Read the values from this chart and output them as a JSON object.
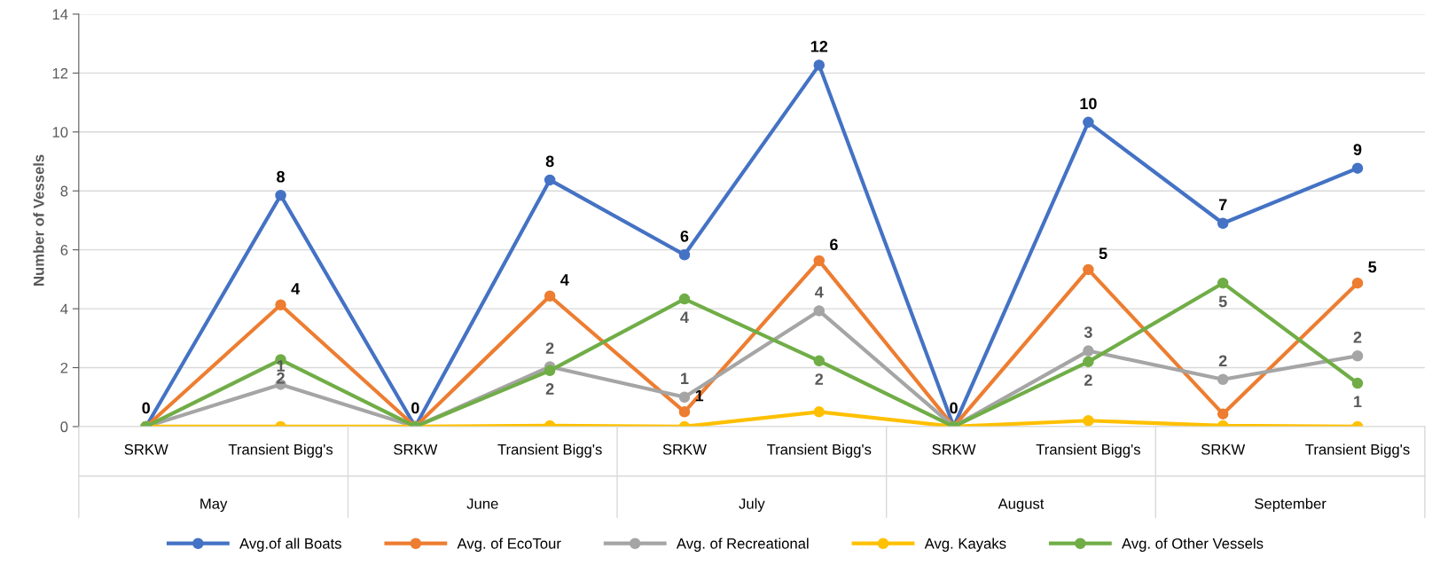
{
  "chart_data": {
    "type": "line",
    "ylabel": "Number of Vessels",
    "categories": [
      "SRKW",
      "Transient Bigg's",
      "SRKW",
      "Transient Bigg's",
      "SRKW",
      "Transient Bigg's",
      "SRKW",
      "Transient Bigg's",
      "SRKW",
      "Transient Bigg's"
    ],
    "annotations": [
      "May",
      "June",
      "July",
      "August",
      "September"
    ],
    "ylim": [
      0,
      14
    ],
    "yticks": [
      0,
      2,
      4,
      6,
      8,
      10,
      12,
      14
    ],
    "grid": "y",
    "legend": "bottom",
    "marker": "circle",
    "line_style": "solid",
    "series": [
      {
        "name": "Avg.of all Boats",
        "color": "#4472c4",
        "values": [
          0,
          7.85,
          0,
          8.37,
          5.83,
          12.27,
          0,
          10.33,
          6.9,
          8.77
        ],
        "value_labels": [
          "0",
          "8",
          "0",
          "8",
          "6",
          "12",
          "0",
          "10",
          "7",
          "9"
        ]
      },
      {
        "name": "Avg. of EcoTour",
        "color": "#ed7d31",
        "values": [
          0,
          4.13,
          0,
          4.43,
          0.5,
          5.63,
          0,
          5.33,
          0.43,
          4.87
        ],
        "value_labels": [
          null,
          "4",
          null,
          "4",
          "1",
          "6",
          null,
          "5",
          null,
          "5"
        ]
      },
      {
        "name": "Avg. of Recreational",
        "color": "#a5a5a5",
        "values": [
          0,
          1.43,
          0,
          2.03,
          1.0,
          3.93,
          0,
          2.57,
          1.6,
          2.4
        ],
        "value_labels": [
          null,
          "1",
          null,
          "2",
          "1",
          "4",
          null,
          "3",
          "2",
          "2"
        ]
      },
      {
        "name": "Avg. Kayaks",
        "color": "#ffc000",
        "values": [
          0,
          0,
          0,
          0.03,
          0,
          0.5,
          0,
          0.2,
          0.03,
          0
        ]
      },
      {
        "name": "Avg. of Other Vessels",
        "color": "#70ad47",
        "values": [
          0,
          2.27,
          0,
          1.9,
          4.33,
          2.23,
          0,
          2.2,
          4.87,
          1.47
        ],
        "value_labels": [
          null,
          "2",
          null,
          "2",
          "4",
          "2",
          null,
          "2",
          "5",
          "1"
        ]
      }
    ]
  }
}
